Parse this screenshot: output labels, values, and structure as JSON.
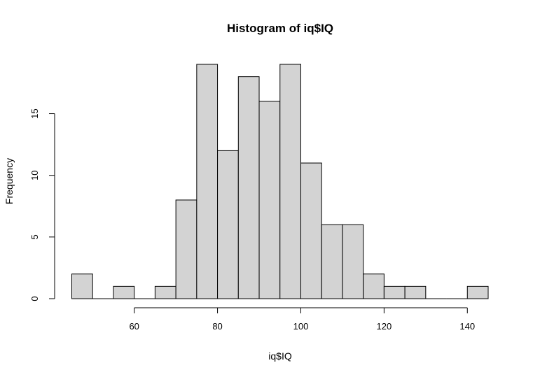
{
  "chart_data": {
    "type": "bar",
    "title": "Histogram of iq$IQ",
    "xlabel": "iq$IQ",
    "ylabel": "Frequency",
    "bin_edges": [
      45,
      50,
      55,
      60,
      65,
      70,
      75,
      80,
      85,
      90,
      95,
      100,
      105,
      110,
      115,
      120,
      125,
      130,
      135,
      140,
      145
    ],
    "counts": [
      2,
      0,
      1,
      0,
      1,
      8,
      19,
      12,
      18,
      16,
      19,
      11,
      6,
      6,
      2,
      1,
      1,
      0,
      0,
      1
    ],
    "xlim": [
      45,
      145
    ],
    "ylim": [
      0,
      19
    ],
    "x_ticks": [
      60,
      80,
      100,
      120,
      140
    ],
    "y_ticks": [
      0,
      5,
      10,
      15
    ],
    "bar_fill": "#d3d3d3",
    "grid": false
  }
}
